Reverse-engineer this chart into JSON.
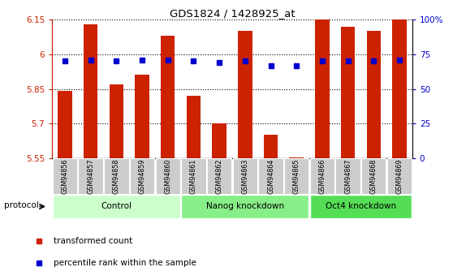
{
  "title": "GDS1824 / 1428925_at",
  "samples": [
    "GSM94856",
    "GSM94857",
    "GSM94858",
    "GSM94859",
    "GSM94860",
    "GSM94861",
    "GSM94862",
    "GSM94863",
    "GSM94864",
    "GSM94865",
    "GSM94866",
    "GSM94867",
    "GSM94868",
    "GSM94869"
  ],
  "transformed_count": [
    5.84,
    6.13,
    5.87,
    5.91,
    6.08,
    5.82,
    5.7,
    6.1,
    5.65,
    5.555,
    6.15,
    6.12,
    6.1,
    6.15
  ],
  "percentile_rank": [
    70,
    71,
    70,
    71,
    71,
    70,
    69,
    70,
    67,
    67,
    70,
    70,
    70,
    71
  ],
  "ylim_left": [
    5.55,
    6.15
  ],
  "ylim_right": [
    0,
    100
  ],
  "yticks_left": [
    5.55,
    5.7,
    5.85,
    6.0,
    6.15
  ],
  "yticks_right": [
    0,
    25,
    50,
    75,
    100
  ],
  "ytick_labels_left": [
    "5.55",
    "5.7",
    "5.85",
    "6",
    "6.15"
  ],
  "ytick_labels_right": [
    "0",
    "25",
    "50",
    "75",
    "100%"
  ],
  "groups": [
    {
      "label": "Control",
      "start": 0,
      "end": 4,
      "color": "#ccffcc"
    },
    {
      "label": "Nanog knockdown",
      "start": 5,
      "end": 9,
      "color": "#88ee88"
    },
    {
      "label": "Oct4 knockdown",
      "start": 10,
      "end": 13,
      "color": "#55dd55"
    }
  ],
  "bar_color": "#cc2200",
  "dot_color": "#0000cc",
  "bar_bottom": 5.55,
  "bar_width": 0.55,
  "legend_items": [
    "transformed count",
    "percentile rank within the sample"
  ],
  "legend_colors": [
    "#cc2200",
    "#0000cc"
  ]
}
